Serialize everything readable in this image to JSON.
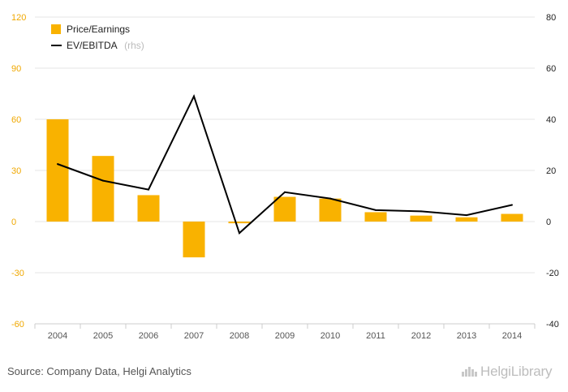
{
  "chart_data": {
    "type": "bar",
    "categories": [
      "2004",
      "2005",
      "2006",
      "2007",
      "2008",
      "2009",
      "2010",
      "2011",
      "2012",
      "2013",
      "2014"
    ],
    "series": [
      {
        "name": "Price/Earnings",
        "type": "bar",
        "axis": "left",
        "color": "#f9b200",
        "values": [
          60,
          38.5,
          15.5,
          -21,
          -1,
          14.5,
          13.5,
          5.5,
          3.5,
          2.5,
          4.5
        ]
      },
      {
        "name": "EV/EBITDA",
        "name_suffix": "(rhs)",
        "type": "line",
        "axis": "right",
        "color": "#000000",
        "values": [
          22.5,
          16,
          12.5,
          49,
          -4.5,
          11.5,
          9,
          4.5,
          4,
          2.5,
          6.5
        ]
      }
    ],
    "left_axis": {
      "min": -60,
      "max": 120,
      "ticks": [
        "120",
        "90",
        "60",
        "30",
        "0",
        "-30",
        "-60"
      ]
    },
    "right_axis": {
      "min": -40,
      "max": 80,
      "ticks": [
        "80",
        "60",
        "40",
        "20",
        "0",
        "-20",
        "-40"
      ]
    },
    "grid": true,
    "legend_position": "top-left"
  },
  "footer": {
    "source": "Source: Company Data, Helgi Analytics",
    "logo_text": "HelgiLibrary"
  }
}
